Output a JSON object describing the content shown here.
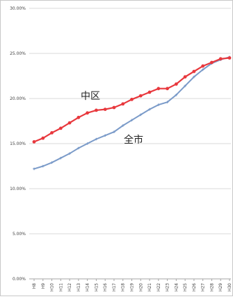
{
  "chart_data": {
    "type": "line",
    "title": "",
    "xlabel": "",
    "ylabel": "",
    "ylim": [
      0,
      30
    ],
    "yticks": [
      "0.00%",
      "5.00%",
      "10.00%",
      "15.00%",
      "20.00%",
      "25.00%",
      "30.00%"
    ],
    "categories": [
      "H8",
      "H9",
      "H10",
      "H11",
      "H12",
      "H13",
      "H14",
      "H15",
      "H16",
      "H17",
      "H18",
      "H19",
      "H20",
      "H21",
      "H22",
      "H23",
      "H24",
      "H25",
      "H26",
      "H27",
      "H28",
      "H29",
      "H30"
    ],
    "grid": "horizontal",
    "legend": "none",
    "series": [
      {
        "name": "中区",
        "color": "#e8383d",
        "values": [
          15.2,
          15.6,
          16.2,
          16.7,
          17.3,
          17.9,
          18.4,
          18.7,
          18.8,
          19.0,
          19.4,
          19.9,
          20.3,
          20.7,
          21.1,
          21.1,
          21.6,
          22.4,
          23.0,
          23.6,
          24.0,
          24.4,
          24.5
        ]
      },
      {
        "name": "全市",
        "color": "#7b9bc9",
        "values": [
          12.2,
          12.5,
          12.9,
          13.4,
          13.9,
          14.5,
          15.0,
          15.5,
          15.9,
          16.3,
          17.0,
          17.6,
          18.2,
          18.8,
          19.3,
          19.6,
          20.4,
          21.4,
          22.4,
          23.2,
          23.9,
          24.3,
          24.6
        ]
      }
    ]
  }
}
